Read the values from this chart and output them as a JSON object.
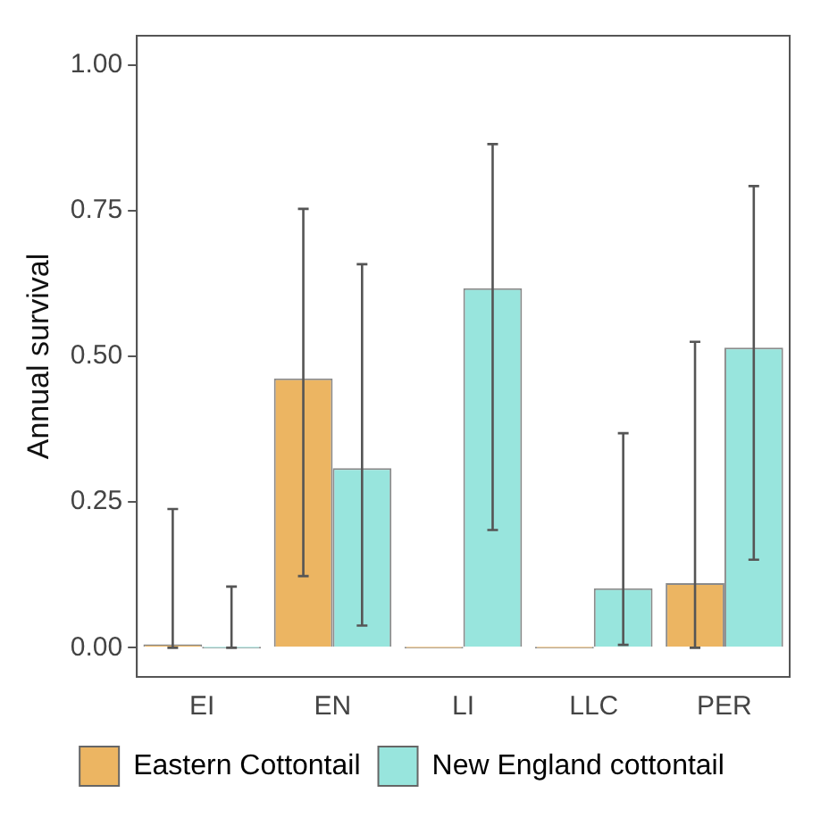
{
  "chart_data": {
    "type": "bar",
    "ylabel": "Annual survival",
    "categories": [
      "EI",
      "EN",
      "LI",
      "LLC",
      "PER"
    ],
    "series": [
      {
        "name": "Eastern Cottontail",
        "color": "#ecb562",
        "values": [
          0.006,
          0.462,
          0,
          0,
          0.111
        ],
        "errors": [
          [
            0,
            0.238
          ],
          [
            0.123,
            0.753
          ],
          null,
          null,
          [
            0,
            0.525
          ]
        ]
      },
      {
        "name": "New England cottontail",
        "color": "#98e5dd",
        "values": [
          0,
          0.308,
          0.617,
          0.102,
          0.515
        ],
        "errors": [
          [
            0,
            0.105
          ],
          [
            0.038,
            0.658
          ],
          [
            0.202,
            0.864
          ],
          [
            0.005,
            0.368
          ],
          [
            0.151,
            0.792
          ]
        ]
      }
    ],
    "ylim": [
      -0.05,
      1.05
    ],
    "yticks": [
      {
        "value": 0,
        "label": "0.00"
      },
      {
        "value": 0.25,
        "label": "0.25"
      },
      {
        "value": 0.5,
        "label": "0.50"
      },
      {
        "value": 0.75,
        "label": "0.75"
      },
      {
        "value": 1,
        "label": "1.00"
      }
    ],
    "grid": false,
    "legend": "bottom"
  }
}
